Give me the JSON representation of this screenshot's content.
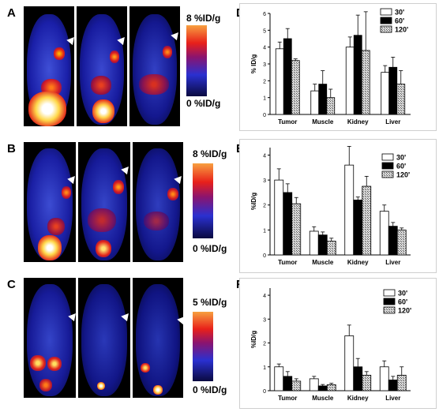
{
  "panels": {
    "A": "A",
    "B": "B",
    "C": "C",
    "D": "D",
    "E": "E",
    "F": "F"
  },
  "colorbars": [
    {
      "top_label": "8 %ID/g",
      "bottom_label": "0 %ID/g"
    },
    {
      "top_label": "8 %ID/g",
      "bottom_label": "0 %ID/g"
    },
    {
      "top_label": "5 %ID/g",
      "bottom_label": "0 %ID/g"
    }
  ],
  "chart_data": [
    {
      "type": "bar",
      "panel": "D",
      "categories": [
        "Tumor",
        "Muscle",
        "Kidney",
        "Liver"
      ],
      "series": [
        {
          "name": "30'",
          "values": [
            3.9,
            1.4,
            4.0,
            2.5
          ],
          "errors": [
            0.4,
            0.4,
            0.6,
            0.4
          ]
        },
        {
          "name": "60'",
          "values": [
            4.5,
            1.8,
            4.7,
            2.8
          ],
          "errors": [
            0.6,
            0.8,
            1.2,
            0.6
          ]
        },
        {
          "name": "120'",
          "values": [
            3.2,
            1.0,
            3.8,
            1.8
          ],
          "errors": [
            0.1,
            0.5,
            2.3,
            0.8
          ]
        }
      ],
      "ylabel": "% ID/g",
      "ylim": [
        0,
        6
      ],
      "yticks": [
        "0",
        "1",
        "2",
        "3",
        "4",
        "5",
        "6"
      ],
      "legend": "top-right"
    },
    {
      "type": "bar",
      "panel": "E",
      "categories": [
        "Tumor",
        "Muscle",
        "Kidney",
        "Liver"
      ],
      "series": [
        {
          "name": "30'",
          "values": [
            3.0,
            0.95,
            3.6,
            1.75
          ],
          "errors": [
            0.45,
            0.18,
            0.75,
            0.25
          ]
        },
        {
          "name": "60'",
          "values": [
            2.5,
            0.8,
            2.2,
            1.15
          ],
          "errors": [
            0.35,
            0.12,
            0.12,
            0.15
          ]
        },
        {
          "name": "120'",
          "values": [
            2.05,
            0.55,
            2.75,
            1.0
          ],
          "errors": [
            0.25,
            0.12,
            0.4,
            0.08
          ]
        }
      ],
      "ylabel": "%ID/g",
      "ylim": [
        0,
        4.3
      ],
      "yticks": [
        "0",
        "1",
        "2",
        "3",
        "4"
      ],
      "legend": "top-right"
    },
    {
      "type": "bar",
      "panel": "F",
      "categories": [
        "Tumor",
        "Muscle",
        "Kidney",
        "Liver"
      ],
      "series": [
        {
          "name": "30'",
          "values": [
            1.0,
            0.5,
            2.3,
            1.0
          ],
          "errors": [
            0.12,
            0.1,
            0.45,
            0.25
          ]
        },
        {
          "name": "60'",
          "values": [
            0.6,
            0.2,
            1.0,
            0.45
          ],
          "errors": [
            0.2,
            0.06,
            0.35,
            0.15
          ]
        },
        {
          "name": "120'",
          "values": [
            0.4,
            0.25,
            0.65,
            0.65
          ],
          "errors": [
            0.1,
            0.06,
            0.15,
            0.35
          ]
        }
      ],
      "ylabel": "%ID/g",
      "ylim": [
        0,
        4.3
      ],
      "yticks": [
        "0",
        "1",
        "2",
        "3",
        "4"
      ],
      "legend": "top-right"
    }
  ]
}
